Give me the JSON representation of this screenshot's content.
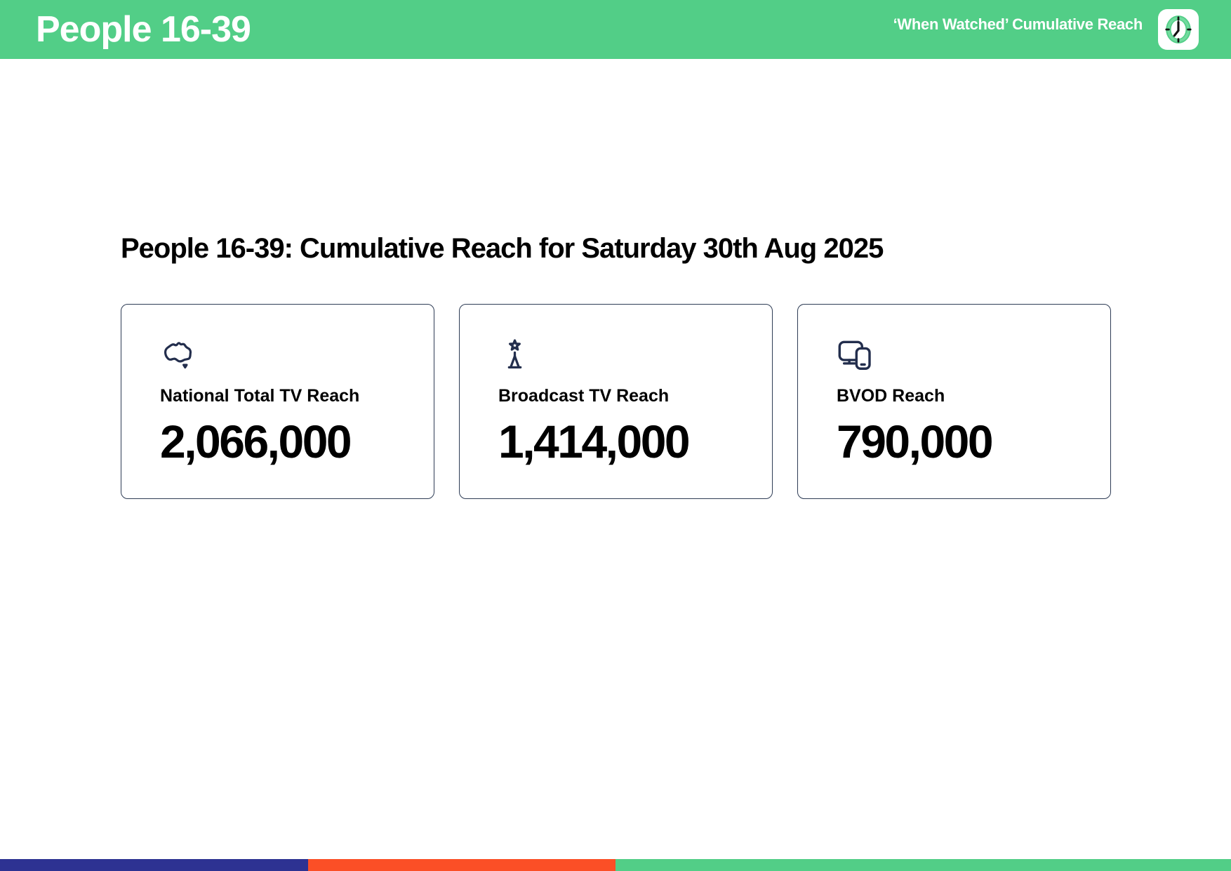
{
  "header": {
    "title": "People 16-39",
    "subtitle": "‘When Watched’ Cumulative Reach"
  },
  "main": {
    "heading": "People 16-39: Cumulative Reach for Saturday 30th Aug 2025",
    "cards": [
      {
        "icon": "australia-map-icon",
        "label": "National Total TV Reach",
        "value": "2,066,000"
      },
      {
        "icon": "broadcast-tower-icon",
        "label": "Broadcast TV Reach",
        "value": "1,414,000"
      },
      {
        "icon": "devices-icon",
        "label": "BVOD Reach",
        "value": "790,000"
      }
    ]
  },
  "footer": {
    "segments": [
      {
        "name": "blue",
        "color": "#2D3292",
        "width_pct": 25
      },
      {
        "name": "orange",
        "color": "#FB4F26",
        "width_pct": 25
      },
      {
        "name": "green",
        "color": "#52CE87",
        "width_pct": 50
      }
    ]
  },
  "colors": {
    "brand_green": "#52CE87",
    "icon_navy": "#232E4D",
    "card_border": "#2E3C55",
    "text": "#000000"
  }
}
